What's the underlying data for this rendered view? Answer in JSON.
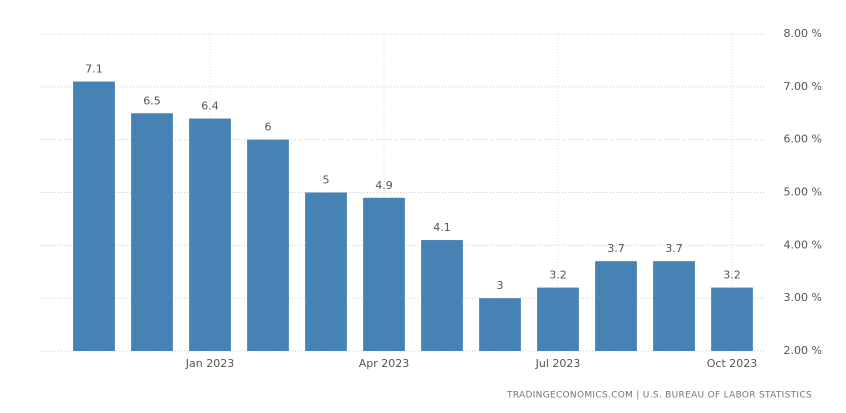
{
  "chart_data": {
    "type": "bar",
    "categories": [
      null,
      null,
      "Jan 2023",
      null,
      null,
      "Apr 2023",
      null,
      null,
      "Jul 2023",
      null,
      null,
      "Oct 2023"
    ],
    "values": [
      7.1,
      6.5,
      6.4,
      6,
      5,
      4.9,
      4.1,
      3,
      3.2,
      3.7,
      3.7,
      3.2
    ],
    "color": "#4682b4",
    "ylim": [
      2,
      8
    ],
    "yticks": [
      {
        "value": 2,
        "label": "2.00 %"
      },
      {
        "value": 3,
        "label": "3.00 %"
      },
      {
        "value": 4,
        "label": "4.00 %"
      },
      {
        "value": 5,
        "label": "5.00 %"
      },
      {
        "value": 6,
        "label": "6.00 %"
      },
      {
        "value": 7,
        "label": "7.00 %"
      },
      {
        "value": 8,
        "label": "8.00 %"
      }
    ],
    "grid": true,
    "axis_side": "right",
    "source": "TRADINGECONOMICS.COM | U.S. BUREAU OF LABOR STATISTICS"
  }
}
